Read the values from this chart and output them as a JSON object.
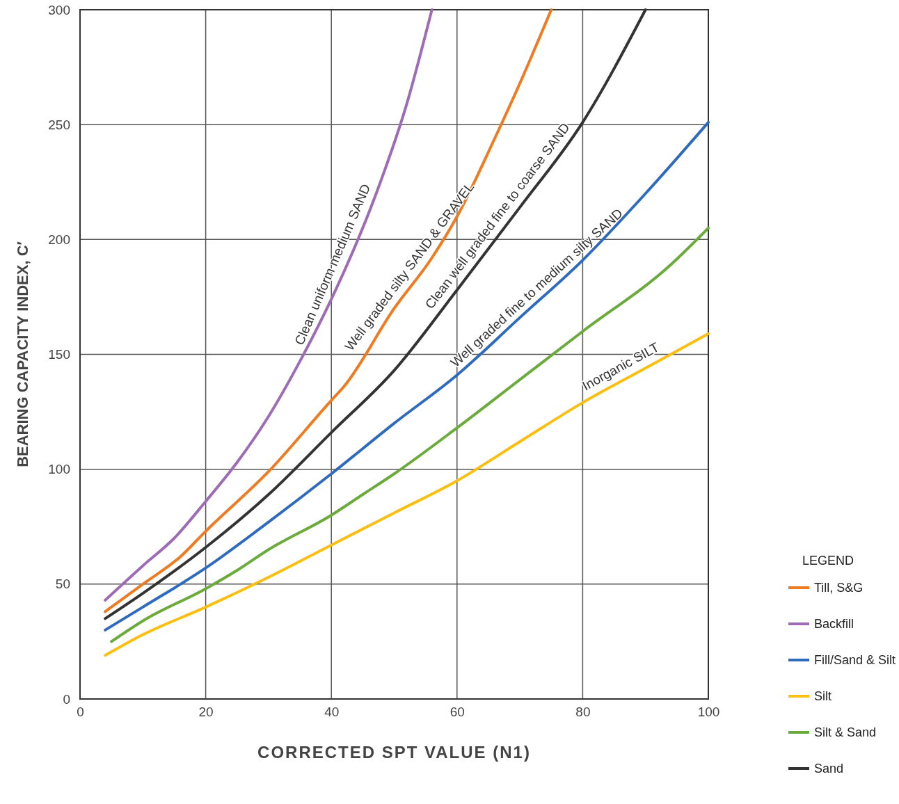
{
  "chart_data": {
    "type": "line",
    "xlabel": "CORRECTED SPT VALUE (N1)",
    "ylabel": "BEARING CAPACITY INDEX, C′",
    "legend_title": "LEGEND",
    "legend": "right",
    "grid": true,
    "line_style": "solid",
    "marker": "none",
    "xlim": [
      0,
      100
    ],
    "xticks": [
      0,
      20,
      40,
      60,
      80,
      100
    ],
    "ylim": [
      0,
      300
    ],
    "yticks": [
      0,
      50,
      100,
      150,
      200,
      250,
      300
    ],
    "series": [
      {
        "name": "Till, S&G",
        "color": "#f07a20",
        "x": [
          4,
          10,
          16,
          20,
          30,
          40,
          42,
          50,
          56,
          60,
          66,
          70,
          75
        ],
        "values": [
          38,
          50,
          62,
          73,
          99,
          130,
          136,
          170,
          192,
          210,
          244,
          268,
          300
        ]
      },
      {
        "name": "Backfill",
        "color": "#9e6bb5",
        "x": [
          4,
          10,
          15,
          20,
          25,
          30,
          35,
          40,
          47,
          52,
          56
        ],
        "values": [
          43,
          58,
          70,
          86,
          103,
          123,
          147,
          174,
          219,
          259,
          300
        ]
      },
      {
        "name": "Fill/Sand & Silt",
        "color": "#2e6bbf",
        "x": [
          4,
          10,
          20,
          30,
          40,
          50,
          60,
          70,
          80,
          90,
          100
        ],
        "values": [
          30,
          40,
          57,
          77,
          98,
          120,
          141,
          166,
          191,
          220,
          251
        ]
      },
      {
        "name": "Silt",
        "color": "#fcbf10",
        "x": [
          4,
          10,
          20,
          30,
          40,
          50,
          60,
          70,
          80,
          90,
          100
        ],
        "values": [
          19,
          28,
          40,
          53,
          67,
          81,
          95,
          112,
          129,
          144,
          159
        ]
      },
      {
        "name": "Silt & Sand",
        "color": "#6aab3c",
        "x": [
          5,
          10,
          20,
          25,
          30,
          40,
          45,
          50,
          60,
          70,
          80,
          94,
          100
        ],
        "values": [
          25,
          34,
          48,
          56,
          65,
          80,
          89,
          98,
          118,
          139,
          160,
          189,
          205
        ]
      },
      {
        "name": "Sand",
        "color": "#333333",
        "x": [
          4,
          10,
          20,
          30,
          40,
          50,
          60,
          70,
          80,
          90
        ],
        "values": [
          35,
          46,
          66,
          89,
          116,
          143,
          178,
          214,
          251,
          300
        ]
      }
    ],
    "annotations": [
      {
        "text": "Clean uniform medium SAND",
        "x": 42,
        "y": 187
      },
      {
        "text": "Well graded silty SAND & GRAVEL",
        "x": 54,
        "y": 185
      },
      {
        "text": "Clean well graded fine to coarse SAND",
        "x": 68,
        "y": 207
      },
      {
        "text": "Well graded fine to medium silty SAND",
        "x": 74,
        "y": 175
      },
      {
        "text": "Inorganic SILT",
        "x": 87,
        "y": 140
      }
    ]
  }
}
